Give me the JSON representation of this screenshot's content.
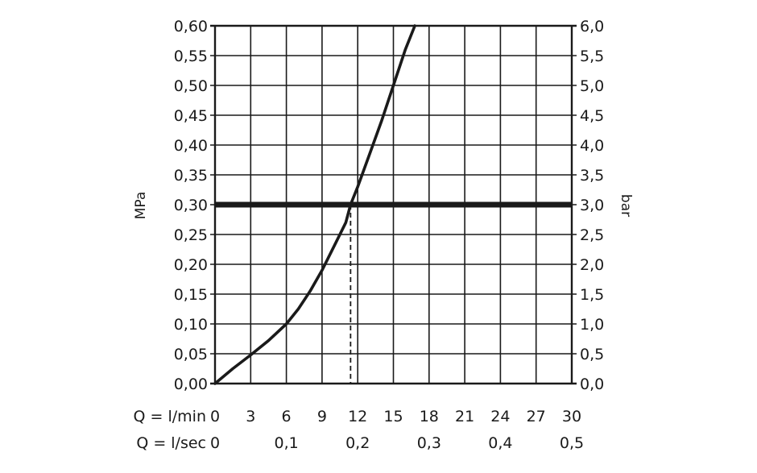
{
  "chart_data": {
    "type": "line",
    "title": "",
    "y_left": {
      "label": "MPa",
      "range": [
        0,
        0.6
      ],
      "ticks": [
        "0,00",
        "0,05",
        "0,10",
        "0,15",
        "0,20",
        "0,25",
        "0,30",
        "0,35",
        "0,40",
        "0,45",
        "0,50",
        "0,55",
        "0,60"
      ]
    },
    "y_right": {
      "label": "bar",
      "range": [
        0,
        6
      ],
      "ticks": [
        "0,0",
        "0,5",
        "1,0",
        "1,5",
        "2,0",
        "2,5",
        "3,0",
        "3,5",
        "4,0",
        "4,5",
        "5,0",
        "5,5",
        "6,0"
      ]
    },
    "x_primary": {
      "label": "Q = l/min",
      "range": [
        0,
        30
      ],
      "ticks": [
        "0",
        "3",
        "6",
        "9",
        "12",
        "15",
        "18",
        "21",
        "24",
        "27",
        "30"
      ]
    },
    "x_secondary": {
      "label": "Q = l/sec",
      "ticks": [
        {
          "text": "0",
          "lmin": 0
        },
        {
          "text": "0,1",
          "lmin": 6
        },
        {
          "text": "0,2",
          "lmin": 12
        },
        {
          "text": "0,3",
          "lmin": 18
        },
        {
          "text": "0,4",
          "lmin": 24
        },
        {
          "text": "0,5",
          "lmin": 30
        }
      ]
    },
    "grid": true,
    "series": [
      {
        "x": [
          0,
          1.5,
          3,
          4.5,
          6,
          7,
          8,
          9,
          10,
          11,
          11.4,
          12,
          13,
          14,
          15,
          16,
          16.8
        ],
        "y": [
          0,
          0.025,
          0.048,
          0.072,
          0.1,
          0.125,
          0.155,
          0.19,
          0.23,
          0.27,
          0.3,
          0.33,
          0.385,
          0.44,
          0.5,
          0.56,
          0.6
        ]
      }
    ],
    "reference_line": {
      "y": 0.3
    },
    "marker_line": {
      "x": 11.4,
      "y": 0.3
    }
  }
}
